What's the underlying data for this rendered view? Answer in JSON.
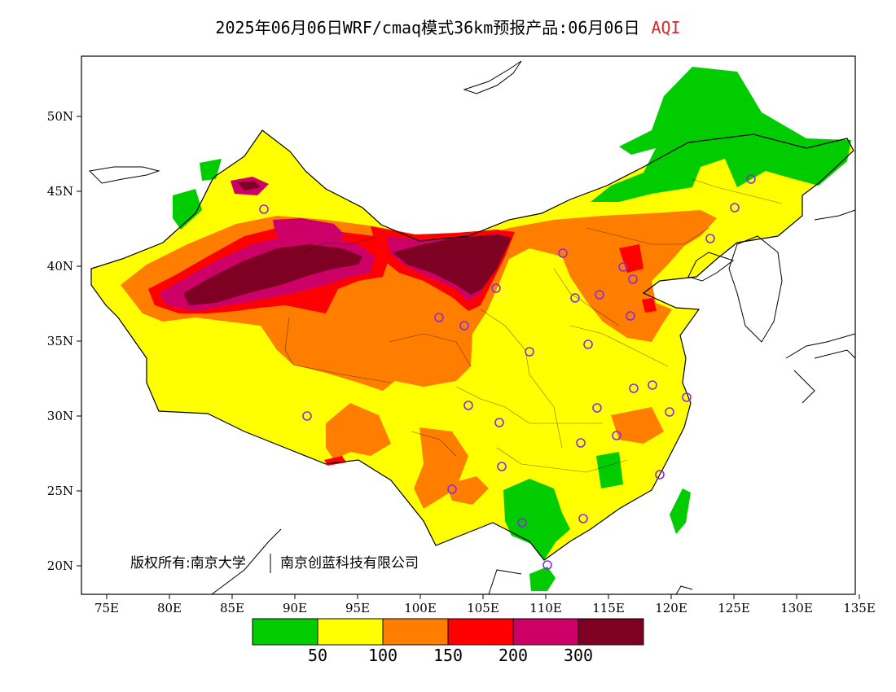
{
  "title": {
    "main": "2025年06月06日WRF/cmaq模式36km预报产品:06月06日",
    "variable": "AQI"
  },
  "axes": {
    "lat_labels": [
      "50N",
      "45N",
      "40N",
      "35N",
      "30N",
      "25N",
      "20N"
    ],
    "lon_labels": [
      "75E",
      "80E",
      "85E",
      "90E",
      "95E",
      "100E",
      "105E",
      "110E",
      "115E",
      "120E",
      "125E",
      "130E",
      "135E"
    ]
  },
  "copyright": {
    "owner_a": "版权所有:南京大学",
    "owner_b": "南京创蓝科技有限公司"
  },
  "colorbar": {
    "colors": [
      "#00cc00",
      "#ffff00",
      "#ff7e00",
      "#ff0000",
      "#cc0066",
      "#7e0023"
    ],
    "thresholds": [
      "50",
      "100",
      "150",
      "200",
      "300"
    ]
  }
}
